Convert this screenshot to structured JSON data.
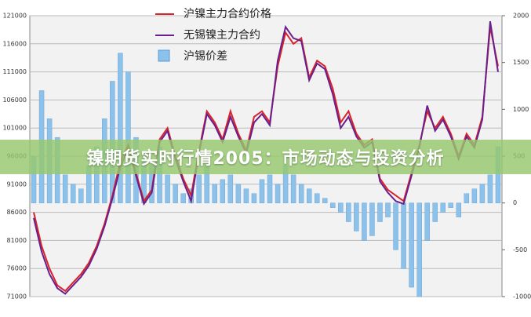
{
  "chart_data": {
    "type": "bar-line",
    "categories": [
      null,
      null,
      null,
      null,
      null,
      null,
      null,
      null,
      null,
      null,
      null,
      null,
      null,
      null,
      null,
      null,
      null,
      null,
      null,
      null,
      null,
      null,
      null,
      null,
      null,
      null,
      null,
      null,
      null,
      null,
      null,
      null,
      null,
      null,
      null,
      null,
      null,
      null,
      null,
      null,
      null,
      null,
      null,
      null,
      null,
      null,
      null,
      null,
      null,
      null,
      null,
      null,
      null,
      null,
      null,
      null,
      null,
      null,
      null,
      null
    ],
    "ylim": [
      71000,
      121000
    ],
    "yticks": [
      71000,
      76000,
      81000,
      86000,
      91000,
      96000,
      101000,
      106000,
      111000,
      116000,
      121000
    ],
    "y2lim": [
      -1000,
      2000
    ],
    "y2ticks": [
      -1000,
      -500,
      0,
      500,
      1000,
      1500,
      2000
    ],
    "grid": true,
    "series": [
      {
        "name": "沪锡价差",
        "type": "bar",
        "axis": "y2",
        "color": "#8cc2ea",
        "values": [
          500,
          1200,
          900,
          700,
          300,
          200,
          150,
          400,
          600,
          900,
          1300,
          1600,
          1400,
          700,
          500,
          400,
          600,
          300,
          200,
          100,
          150,
          300,
          400,
          200,
          250,
          300,
          200,
          150,
          100,
          250,
          300,
          200,
          400,
          300,
          200,
          150,
          100,
          50,
          -50,
          -100,
          -200,
          -300,
          -400,
          -350,
          -200,
          -150,
          -500,
          -700,
          -900,
          -1000,
          -400,
          -200,
          -100,
          -50,
          -150,
          100,
          150,
          200,
          300,
          600
        ]
      },
      {
        "name": "沪镍主力合约价格",
        "type": "line",
        "color": "#d9232a",
        "values": [
          86000,
          80000,
          76000,
          73000,
          72000,
          73500,
          75000,
          77000,
          80000,
          84000,
          89000,
          95000,
          98000,
          93000,
          88000,
          90000,
          99000,
          101000,
          96000,
          92000,
          89000,
          97000,
          104000,
          102000,
          99000,
          104000,
          100000,
          97000,
          103000,
          104000,
          102000,
          112000,
          118000,
          116000,
          117000,
          110000,
          113000,
          112000,
          108000,
          102000,
          104000,
          100000,
          98000,
          99000,
          92000,
          90000,
          89000,
          88000,
          93000,
          98000,
          104000,
          101000,
          103000,
          100000,
          96000,
          100000,
          98000,
          103000,
          119000,
          112000
        ]
      },
      {
        "name": "无锡镍主力合约",
        "type": "line",
        "color": "#6a1f8c",
        "values": [
          85000,
          79000,
          75000,
          72500,
          71500,
          73000,
          74500,
          76500,
          79500,
          83500,
          88500,
          94000,
          97500,
          92500,
          87500,
          89500,
          98500,
          100500,
          95500,
          91500,
          88000,
          96500,
          103500,
          101500,
          98500,
          103000,
          99500,
          96500,
          102000,
          103500,
          101500,
          113000,
          119000,
          117000,
          116500,
          109500,
          112500,
          111500,
          107000,
          101000,
          103000,
          99500,
          97500,
          98500,
          91500,
          89500,
          88000,
          87500,
          92500,
          97500,
          105000,
          100500,
          102500,
          99500,
          95500,
          99500,
          97500,
          102500,
          120000,
          111000
        ]
      }
    ]
  },
  "banner": {
    "text": "镍期货实时行情2005：市场动态与投资分析"
  }
}
